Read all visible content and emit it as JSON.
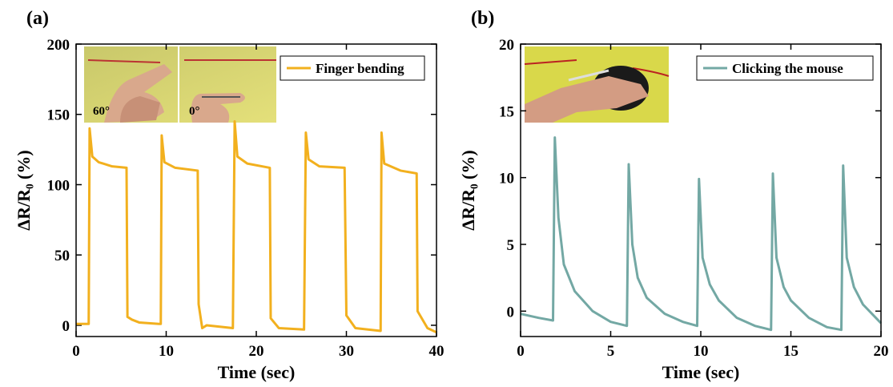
{
  "chart_data": [
    {
      "type": "line",
      "panel_label": "(a)",
      "xlabel": "Time (sec)",
      "ylabel": "ΔR/R₀ (%)",
      "xlim": [
        0,
        40
      ],
      "xticks": [
        0,
        10,
        20,
        30,
        40
      ],
      "ylim": [
        -8,
        200
      ],
      "yticks": [
        0,
        50,
        100,
        150,
        200
      ],
      "inset_labels": [
        "60°",
        "0°"
      ],
      "x": [
        0,
        1.4,
        1.5,
        1.8,
        2.5,
        4,
        5.6,
        5.7,
        6.2,
        7,
        9.2,
        9.4,
        9.5,
        9.8,
        11,
        13.5,
        13.6,
        14,
        14.5,
        17.4,
        17.6,
        17.9,
        19,
        21.5,
        21.6,
        22.5,
        25.3,
        25.5,
        25.8,
        27,
        29.8,
        30,
        31,
        33.8,
        33.9,
        34.2,
        36,
        37.8,
        37.9,
        39,
        40
      ],
      "series": [
        {
          "name": "Finger bending",
          "color": "#f2b01e",
          "values": [
            1,
            1,
            140,
            120,
            116,
            113,
            112,
            6,
            4,
            2,
            1,
            1,
            135,
            116,
            112,
            110,
            15,
            -2,
            0,
            -2,
            145,
            120,
            115,
            112,
            5,
            -2,
            -3,
            137,
            118,
            113,
            112,
            7,
            -2,
            -4,
            137,
            115,
            110,
            108,
            10,
            -2,
            -5
          ]
        }
      ]
    },
    {
      "type": "line",
      "panel_label": "(b)",
      "xlabel": "Time (sec)",
      "ylabel": "ΔR/R₀ (%)",
      "xlim": [
        0,
        20
      ],
      "xticks": [
        0,
        5,
        10,
        15,
        20
      ],
      "ylim": [
        -1.9,
        20
      ],
      "yticks": [
        0,
        5,
        10,
        15,
        20
      ],
      "x": [
        0,
        1,
        1.8,
        1.9,
        2.1,
        2.4,
        3,
        4,
        5,
        5.9,
        6.0,
        6.2,
        6.5,
        7,
        8,
        9,
        9.8,
        9.9,
        10.1,
        10.5,
        11,
        12,
        13,
        13.9,
        14.0,
        14.2,
        14.6,
        15,
        16,
        17,
        17.8,
        17.9,
        18.1,
        18.5,
        19,
        20
      ],
      "series": [
        {
          "name": "Clicking the mouse",
          "color": "#73a8a4",
          "values": [
            -0.2,
            -0.5,
            -0.7,
            13,
            7,
            3.5,
            1.5,
            0,
            -0.8,
            -1.1,
            11,
            5,
            2.5,
            1,
            -0.2,
            -0.8,
            -1.1,
            9.9,
            4,
            2,
            0.8,
            -0.5,
            -1.1,
            -1.4,
            10.3,
            4,
            1.8,
            0.8,
            -0.5,
            -1.2,
            -1.4,
            10.9,
            4,
            1.8,
            0.5,
            -0.9
          ]
        }
      ]
    }
  ]
}
